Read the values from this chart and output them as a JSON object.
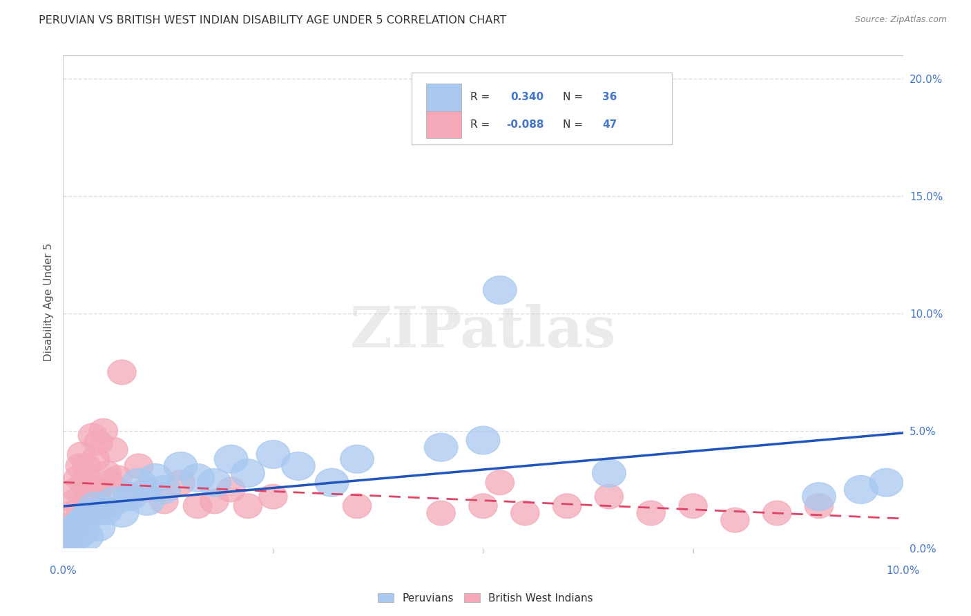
{
  "title": "PERUVIAN VS BRITISH WEST INDIAN DISABILITY AGE UNDER 5 CORRELATION CHART",
  "source": "Source: ZipAtlas.com",
  "ylabel": "Disability Age Under 5",
  "ylabel_right_vals": [
    0.0,
    5.0,
    10.0,
    15.0,
    20.0
  ],
  "xlim": [
    0.0,
    10.0
  ],
  "ylim": [
    0.0,
    21.0
  ],
  "blue_color": "#A8C8F0",
  "pink_color": "#F4A8B8",
  "blue_line_color": "#2255BB",
  "pink_line_color": "#DD4466",
  "grid_color": "#DDDDE8",
  "bg_color": "#FFFFFF",
  "title_color": "#333333",
  "axis_label_color": "#4477CC",
  "watermark": "ZIPatlas",
  "R1": "0.340",
  "N1": "36",
  "R2": "-0.088",
  "N2": "47",
  "legend_label1": "Peruvians",
  "legend_label2": "British West Indians",
  "peruvians_x": [
    0.05,
    0.08,
    0.12,
    0.15,
    0.18,
    0.2,
    0.22,
    0.25,
    0.28,
    0.32,
    0.38,
    0.42,
    0.5,
    0.6,
    0.7,
    0.8,
    0.9,
    1.0,
    1.1,
    1.2,
    1.4,
    1.6,
    1.8,
    2.0,
    2.2,
    2.5,
    2.8,
    3.2,
    3.5,
    4.5,
    5.0,
    5.2,
    6.5,
    9.0,
    9.5,
    9.8
  ],
  "peruvians_y": [
    0.4,
    0.6,
    0.8,
    0.5,
    0.9,
    1.0,
    0.7,
    1.2,
    0.5,
    1.5,
    1.8,
    0.9,
    1.6,
    2.0,
    1.5,
    2.2,
    2.8,
    2.0,
    3.0,
    2.5,
    3.5,
    3.0,
    2.8,
    3.8,
    3.2,
    4.0,
    3.5,
    2.8,
    3.8,
    4.3,
    4.6,
    11.0,
    3.2,
    2.2,
    2.5,
    2.8
  ],
  "bwi_x": [
    0.04,
    0.06,
    0.08,
    0.1,
    0.12,
    0.14,
    0.16,
    0.18,
    0.2,
    0.22,
    0.25,
    0.28,
    0.3,
    0.32,
    0.35,
    0.38,
    0.4,
    0.42,
    0.45,
    0.48,
    0.52,
    0.55,
    0.6,
    0.65,
    0.7,
    0.8,
    0.9,
    1.0,
    1.2,
    1.4,
    1.6,
    1.8,
    2.0,
    2.2,
    2.5,
    3.5,
    4.5,
    5.0,
    5.2,
    5.5,
    6.0,
    6.5,
    7.0,
    7.5,
    8.0,
    8.5,
    9.0
  ],
  "bwi_y": [
    0.3,
    0.5,
    0.8,
    1.0,
    1.5,
    2.0,
    2.5,
    3.0,
    3.5,
    4.0,
    2.8,
    3.5,
    1.5,
    2.2,
    4.8,
    3.8,
    2.5,
    4.5,
    1.8,
    5.0,
    3.2,
    2.8,
    4.2,
    3.0,
    7.5,
    2.2,
    3.5,
    2.5,
    2.0,
    2.8,
    1.8,
    2.0,
    2.5,
    1.8,
    2.2,
    1.8,
    1.5,
    1.8,
    2.8,
    1.5,
    1.8,
    2.2,
    1.5,
    1.8,
    1.2,
    1.5,
    1.8
  ]
}
